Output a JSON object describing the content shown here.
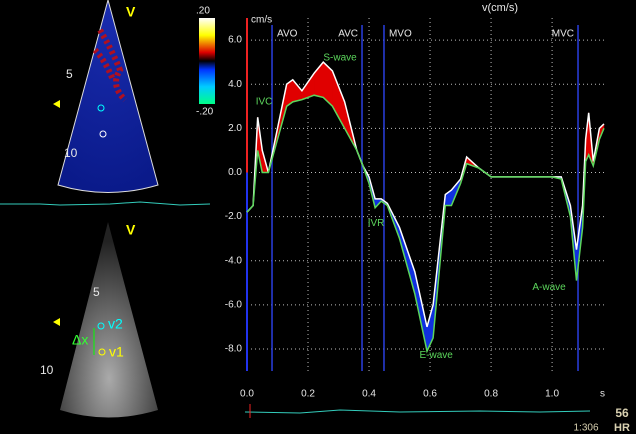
{
  "panels": {
    "color_top": ".20",
    "color_bottom": "-.20",
    "top_view": "V",
    "top_depths": [
      "5",
      "10"
    ],
    "bottom_view": "V",
    "bottom_depths": [
      "5",
      "10"
    ],
    "dx": "Δx",
    "v2": "v2",
    "v1": "v1"
  },
  "status": {
    "hr_value": "56",
    "hr_label": "HR",
    "frame": "1:306"
  },
  "chart_data": {
    "type": "line",
    "title": "v(cm/s)",
    "y_label": "cm/s",
    "x_label": "s",
    "x": [
      0,
      0.02,
      0.035,
      0.05,
      0.07,
      0.1,
      0.13,
      0.15,
      0.18,
      0.22,
      0.25,
      0.28,
      0.32,
      0.36,
      0.38,
      0.4,
      0.42,
      0.44,
      0.46,
      0.5,
      0.55,
      0.59,
      0.61,
      0.63,
      0.65,
      0.67,
      0.7,
      0.72,
      0.76,
      0.8,
      1.0,
      1.03,
      1.06,
      1.08,
      1.1,
      1.11,
      1.12,
      1.135,
      1.155,
      1.17
    ],
    "series": [
      {
        "color": "#ffffff",
        "values": [
          -1.8,
          -1.5,
          2.5,
          1.0,
          0,
          2.0,
          4.0,
          4.2,
          3.7,
          4.5,
          5.0,
          4.6,
          3.2,
          1.0,
          0.3,
          -0.2,
          -1.2,
          -1.2,
          -1.4,
          -2.5,
          -4.5,
          -7.0,
          -6.0,
          -3.5,
          -1.0,
          -0.8,
          -0.3,
          0.7,
          0.2,
          -0.2,
          -0.2,
          -0.2,
          -1.5,
          -3.5,
          -1.5,
          1.5,
          2.7,
          0.5,
          2.0,
          2.2
        ]
      },
      {
        "color": "#5cd65c",
        "values": [
          -1.8,
          -1.5,
          1.0,
          0,
          0,
          1.5,
          3.0,
          3.2,
          3.3,
          3.5,
          3.4,
          3.0,
          2.0,
          1.0,
          0.3,
          -0.5,
          -1.6,
          -1.3,
          -1.5,
          -3.0,
          -5.5,
          -8.1,
          -7.5,
          -4.5,
          -1.5,
          -1.5,
          -0.5,
          0.4,
          0.2,
          -0.2,
          -0.2,
          -0.3,
          -2.0,
          -4.9,
          -2.5,
          0.5,
          0.8,
          0.3,
          1.5,
          2.0
        ]
      }
    ],
    "fill_positive": "#e00000",
    "fill_negative": "#1030e0",
    "xlim": [
      0,
      1.18
    ],
    "ylim": [
      -9,
      7
    ],
    "xticks": [
      {
        "value": 0,
        "label": "0.0"
      },
      {
        "value": 0.2,
        "label": "0.2"
      },
      {
        "value": 0.4,
        "label": "0.4"
      },
      {
        "value": 0.6,
        "label": "0.6"
      },
      {
        "value": 0.8,
        "label": "0.8"
      },
      {
        "value": 1.0,
        "label": "1.0"
      }
    ],
    "yticks": [
      {
        "value": 6,
        "label": "6.0"
      },
      {
        "value": 4,
        "label": "4.0"
      },
      {
        "value": 2,
        "label": "2.0"
      },
      {
        "value": 0,
        "label": "0.0"
      },
      {
        "value": -2,
        "label": "-2.0"
      },
      {
        "value": -4,
        "label": "-4.0"
      },
      {
        "value": -6,
        "label": "-6.0"
      },
      {
        "value": -8,
        "label": "-8.0"
      }
    ],
    "grid": true,
    "events": [
      {
        "label": "AVO",
        "x": 0.082
      },
      {
        "label": "AVC",
        "x": 0.377
      },
      {
        "label": "MVO",
        "x": 0.449
      },
      {
        "label": "MVC",
        "x": 1.085
      }
    ],
    "annotations": [
      {
        "text": "IVC",
        "x": 0.056,
        "y": 3.2
      },
      {
        "text": "S-wave",
        "x": 0.305,
        "y": 5.2
      },
      {
        "text": "IVR",
        "x": 0.423,
        "y": -2.3
      },
      {
        "text": "E-wave",
        "x": 0.62,
        "y": -8.3
      },
      {
        "text": "A-wave",
        "x": 0.99,
        "y": -5.2
      }
    ],
    "annotation_color": "#5cd65c"
  }
}
